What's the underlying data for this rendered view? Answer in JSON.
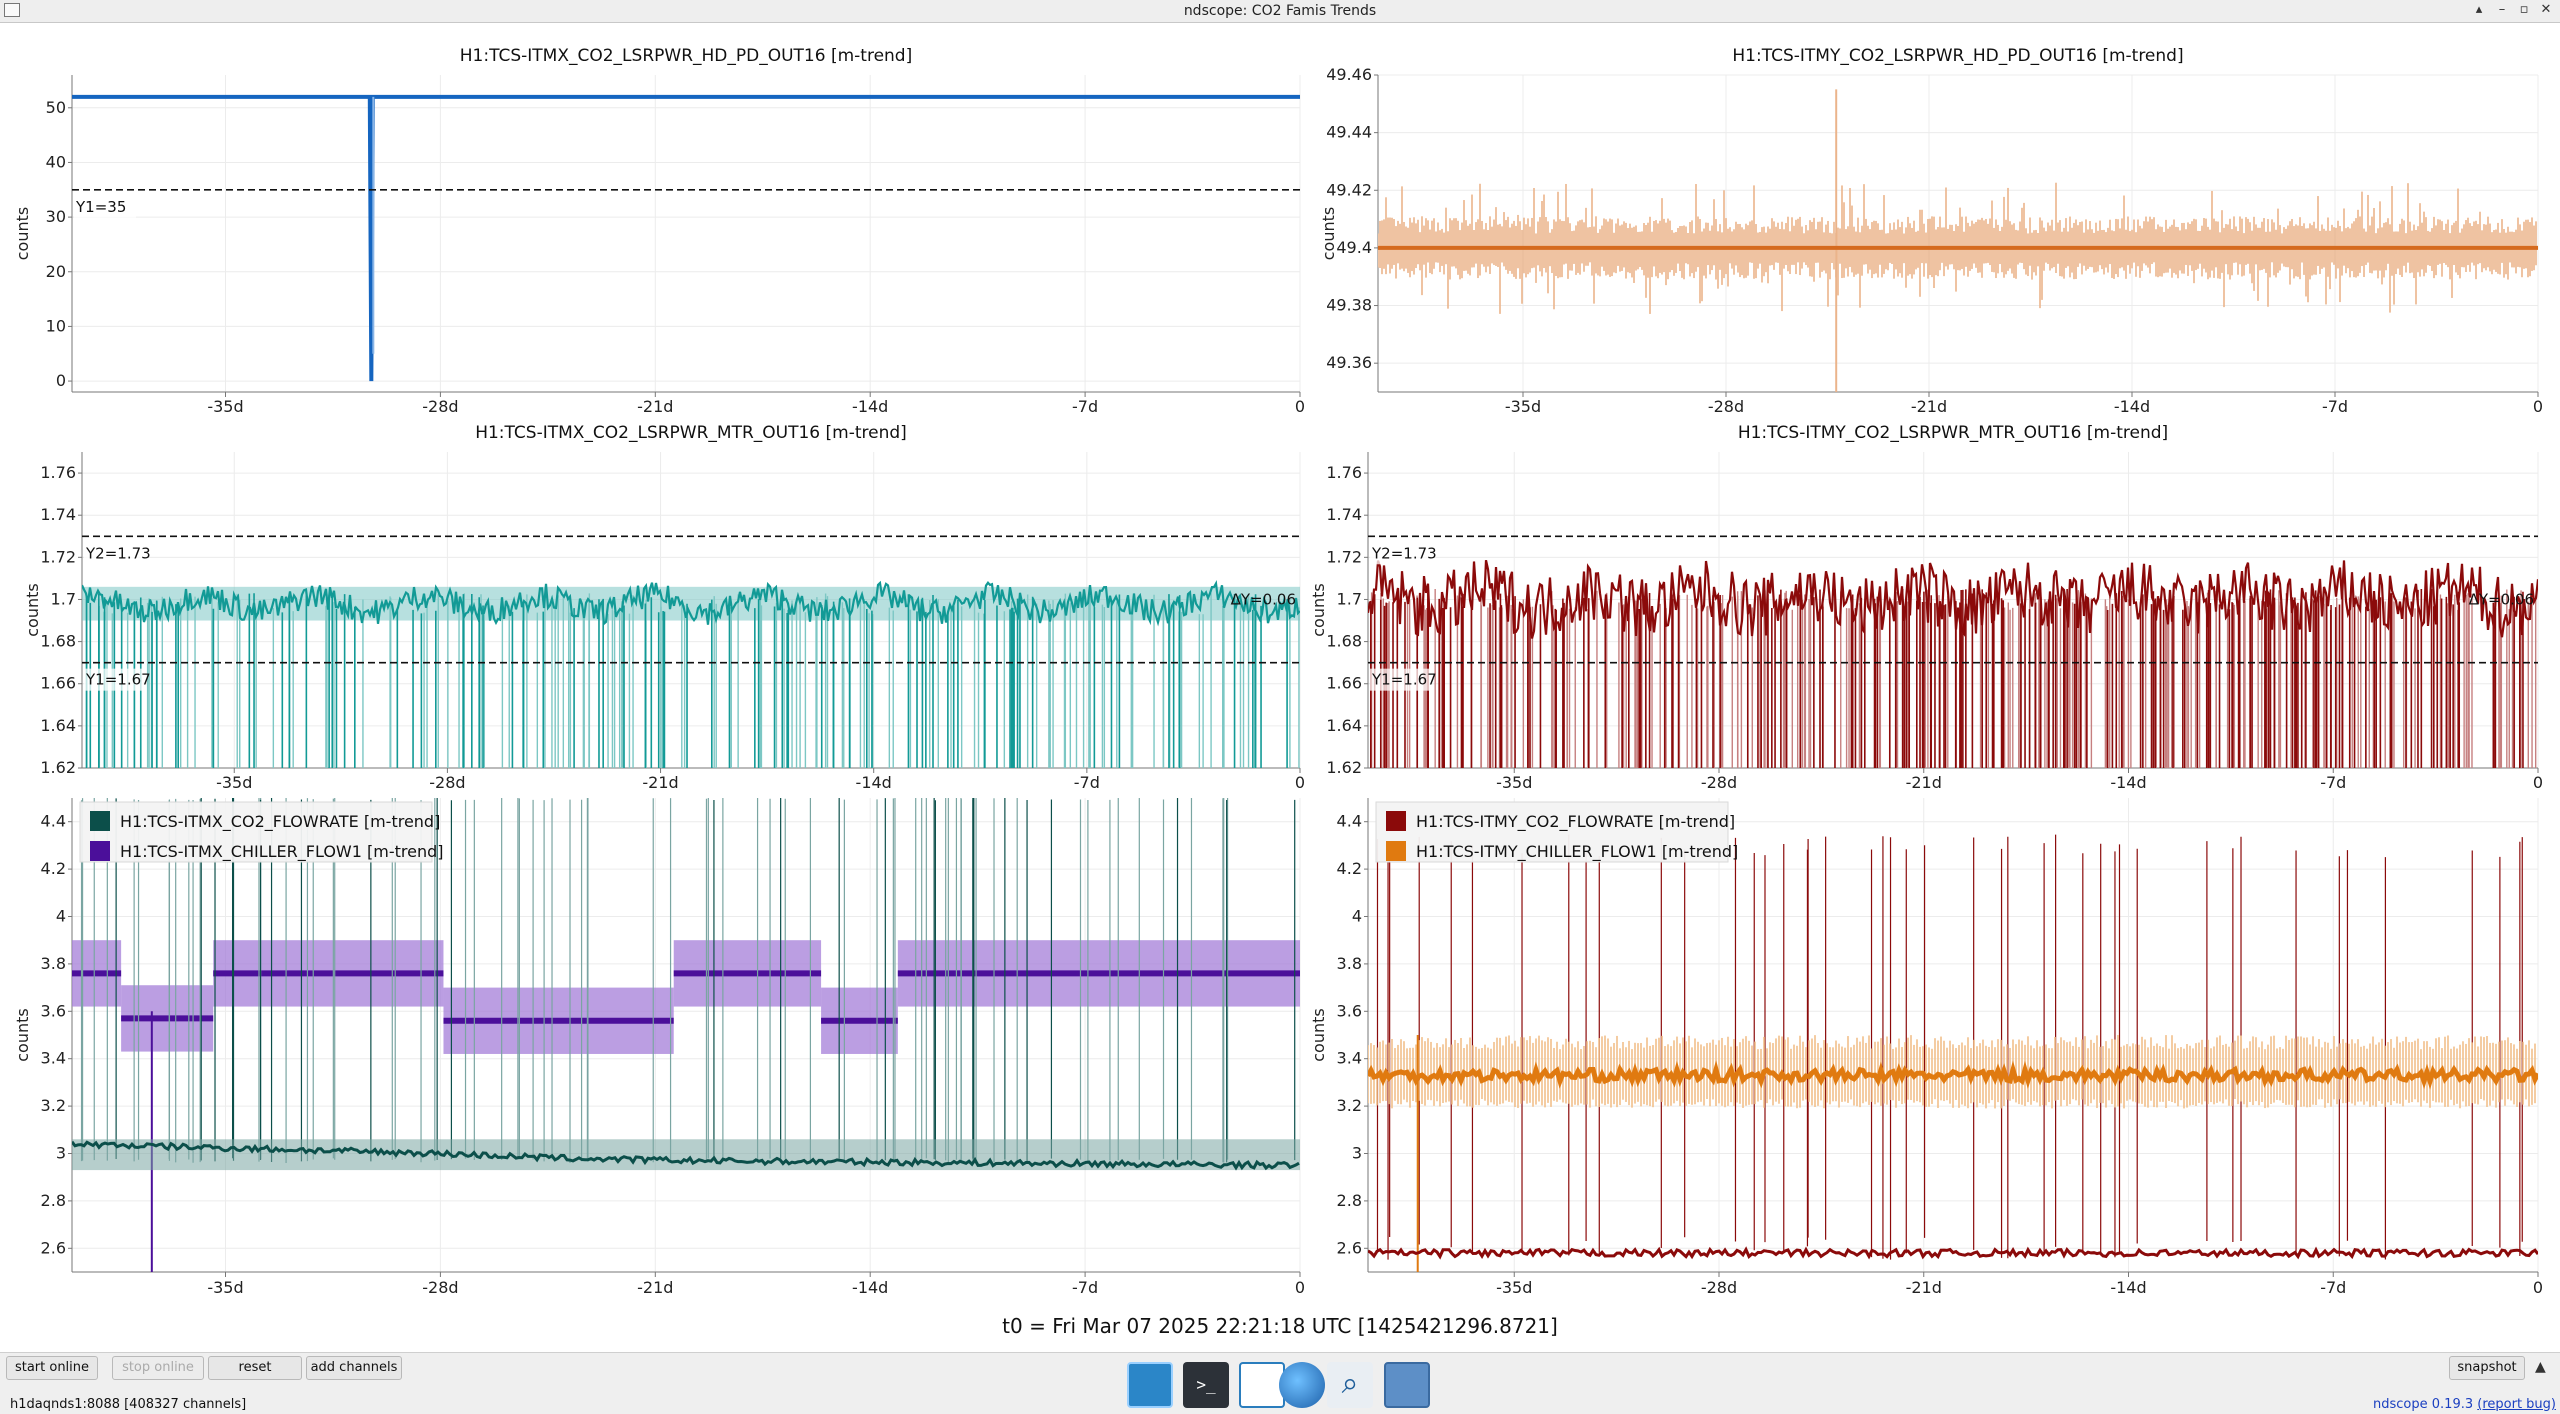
{
  "window": {
    "title": "ndscope: CO2 Famis Trends",
    "controls": [
      "▴",
      "–",
      "▫",
      "✕"
    ]
  },
  "x_ticks": [
    "-35d",
    "-28d",
    "-21d",
    "-14d",
    "-7d",
    "0"
  ],
  "t0_label": "t0 = Fri Mar 07 2025 22:21:18 UTC [1425421296.8721]",
  "colors": {
    "itmx_pd": "#1565c0",
    "itmy_pd_dark": "#d56a1e",
    "itmy_pd_light": "#ebb48b",
    "teal": "#129a96",
    "teal_light": "#7cc7c4",
    "darkred": "#8b0a0a",
    "darkred_light": "#c68080",
    "dark_green": "#0c4f4a",
    "dark_green_light": "#7aa5a2",
    "purple": "#4b0f9a",
    "purple_light": "#a47ed8",
    "orange": "#e07a10",
    "orange_light": "#f2c08a",
    "cursor": "#111111"
  },
  "toolbar": {
    "start_online": "start online",
    "stop_online": "stop online",
    "reset": "reset",
    "add_channels": "add channels",
    "snapshot": "snapshot",
    "expand_icon": "chevron-up-icon"
  },
  "status": {
    "server": "h1daqnds1:8088  [408327 channels]",
    "version": "ndscope 0.19.3",
    "report_bug": "(report bug)"
  },
  "dock": {
    "icons": [
      "desktop-icon",
      "terminal-icon",
      "text-editor-icon",
      "web-browser-icon",
      "search-icon",
      "file-manager-icon"
    ]
  },
  "plots": [
    {
      "id": "itmx_pd",
      "title": "H1:TCS-ITMX_CO2_LSRPWR_HD_PD_OUT16 [m-trend]",
      "ylabel": "counts",
      "yticks": [
        "0",
        "10",
        "20",
        "30",
        "40",
        "50"
      ],
      "cursors": [
        {
          "label": "Y1=35",
          "value": 35
        }
      ],
      "legend": []
    },
    {
      "id": "itmy_pd",
      "title": "H1:TCS-ITMY_CO2_LSRPWR_HD_PD_OUT16 [m-trend]",
      "ylabel": "counts",
      "yticks": [
        "49.36",
        "49.38",
        "49.4",
        "49.42",
        "49.44",
        "49.46"
      ],
      "cursors": [],
      "legend": []
    },
    {
      "id": "itmx_mtr",
      "title": "H1:TCS-ITMX_CO2_LSRPWR_MTR_OUT16 [m-trend]",
      "ylabel": "counts",
      "yticks": [
        "1.62",
        "1.64",
        "1.66",
        "1.68",
        "1.7",
        "1.72",
        "1.74",
        "1.76"
      ],
      "cursors": [
        {
          "label": "Y2=1.73",
          "value": 1.73
        },
        {
          "label": "Y1=1.67",
          "value": 1.67
        }
      ],
      "delta": "ΔY=0.06",
      "legend": []
    },
    {
      "id": "itmy_mtr",
      "title": "H1:TCS-ITMY_CO2_LSRPWR_MTR_OUT16 [m-trend]",
      "ylabel": "counts",
      "yticks": [
        "1.62",
        "1.64",
        "1.66",
        "1.68",
        "1.7",
        "1.72",
        "1.74",
        "1.76"
      ],
      "cursors": [
        {
          "label": "Y2=1.73",
          "value": 1.73
        },
        {
          "label": "Y1=1.67",
          "value": 1.67
        }
      ],
      "delta": "ΔY=0.06",
      "legend": []
    },
    {
      "id": "itmx_flow",
      "title": "",
      "ylabel": "counts",
      "yticks": [
        "2.6",
        "2.8",
        "3",
        "3.2",
        "3.4",
        "3.6",
        "3.8",
        "4",
        "4.2",
        "4.4"
      ],
      "cursors": [],
      "legend": [
        {
          "label": "H1:TCS-ITMX_CO2_FLOWRATE [m-trend]",
          "color": "#0c4f4a"
        },
        {
          "label": "H1:TCS-ITMX_CHILLER_FLOW1 [m-trend]",
          "color": "#4b0f9a"
        }
      ]
    },
    {
      "id": "itmy_flow",
      "title": "",
      "ylabel": "counts",
      "yticks": [
        "2.6",
        "2.8",
        "3",
        "3.2",
        "3.4",
        "3.6",
        "3.8",
        "4",
        "4.2",
        "4.4"
      ],
      "cursors": [],
      "legend": [
        {
          "label": "H1:TCS-ITMY_CO2_FLOWRATE [m-trend]",
          "color": "#8b0a0a"
        },
        {
          "label": "H1:TCS-ITMY_CHILLER_FLOW1 [m-trend]",
          "color": "#e07a10"
        }
      ]
    }
  ],
  "chart_data": [
    {
      "type": "line",
      "title": "H1:TCS-ITMX_CO2_LSRPWR_HD_PD_OUT16 [m-trend]",
      "ylabel": "counts",
      "xlim_days": [
        -40,
        0
      ],
      "ylim": [
        -2,
        56
      ],
      "series": [
        {
          "name": "H1:TCS-ITMX_CO2_LSRPWR_HD_PD_OUT16 [m-trend]",
          "x": [
            -40,
            -30.3,
            -30.25,
            -30.2,
            0
          ],
          "y": [
            52,
            52,
            0,
            52,
            52
          ]
        }
      ],
      "cursors": {
        "Y1": 35
      }
    },
    {
      "type": "line",
      "title": "H1:TCS-ITMY_CO2_LSRPWR_HD_PD_OUT16 [m-trend]",
      "ylabel": "counts",
      "xlim_days": [
        -40,
        0
      ],
      "ylim": [
        49.35,
        49.46
      ],
      "series": [
        {
          "name": "H1:TCS-ITMY_CO2_LSRPWR_HD_PD_OUT16 [m-trend]",
          "mean": 49.4,
          "min_typical": 49.385,
          "max_typical": 49.415,
          "spike_day": -24.2,
          "spike_max": 49.455,
          "spike_min": 49.35
        }
      ]
    },
    {
      "type": "line",
      "title": "H1:TCS-ITMX_CO2_LSRPWR_MTR_OUT16 [m-trend]",
      "ylabel": "counts",
      "xlim_days": [
        -40,
        0
      ],
      "ylim": [
        1.62,
        1.77
      ],
      "series": [
        {
          "name": "H1:TCS-ITMX_CO2_LSRPWR_MTR_OUT16 [m-trend]",
          "mean": 1.698,
          "min_typical": 1.69,
          "max_typical": 1.705,
          "dropout_to": 1.62
        }
      ],
      "cursors": {
        "Y1": 1.67,
        "Y2": 1.73,
        "dY": 0.06
      }
    },
    {
      "type": "line",
      "title": "H1:TCS-ITMY_CO2_LSRPWR_MTR_OUT16 [m-trend]",
      "ylabel": "counts",
      "xlim_days": [
        -40,
        0
      ],
      "ylim": [
        1.62,
        1.77
      ],
      "series": [
        {
          "name": "H1:TCS-ITMY_CO2_LSRPWR_MTR_OUT16 [m-trend]",
          "mean": 1.7,
          "min_typical": 1.68,
          "max_typical": 1.73,
          "dropout_to": 1.62
        }
      ],
      "cursors": {
        "Y1": 1.67,
        "Y2": 1.73,
        "dY": 0.06
      }
    },
    {
      "type": "line",
      "title": "",
      "ylabel": "counts",
      "xlim_days": [
        -40,
        0
      ],
      "ylim": [
        2.5,
        4.5
      ],
      "legend_position": "top-left",
      "series": [
        {
          "name": "H1:TCS-ITMX_CO2_FLOWRATE [m-trend]",
          "x": [
            -40,
            -34,
            -28,
            -24,
            -20,
            -10,
            0
          ],
          "y": [
            3.04,
            3.02,
            3.0,
            2.98,
            2.97,
            2.96,
            2.95
          ]
        },
        {
          "name": "H1:TCS-ITMX_CHILLER_FLOW1 [m-trend]",
          "segments": [
            {
              "from": -40,
              "to": -38.4,
              "value": 3.76
            },
            {
              "from": -38.4,
              "to": -35.4,
              "value": 3.57
            },
            {
              "from": -35.4,
              "to": -27.9,
              "value": 3.76
            },
            {
              "from": -27.9,
              "to": -20.4,
              "value": 3.56
            },
            {
              "from": -20.4,
              "to": -15.6,
              "value": 3.76
            },
            {
              "from": -15.6,
              "to": -13.1,
              "value": 3.56
            },
            {
              "from": -13.1,
              "to": 0,
              "value": 3.76
            }
          ]
        }
      ]
    },
    {
      "type": "line",
      "title": "",
      "ylabel": "counts",
      "xlim_days": [
        -40,
        0
      ],
      "ylim": [
        2.5,
        4.5
      ],
      "legend_position": "top-left",
      "series": [
        {
          "name": "H1:TCS-ITMY_CO2_FLOWRATE [m-trend]",
          "x": [
            -40,
            0
          ],
          "y": [
            2.58,
            2.58
          ]
        },
        {
          "name": "H1:TCS-ITMY_CHILLER_FLOW1 [m-trend]",
          "x": [
            -40,
            0
          ],
          "y": [
            3.33,
            3.33
          ]
        }
      ]
    }
  ]
}
